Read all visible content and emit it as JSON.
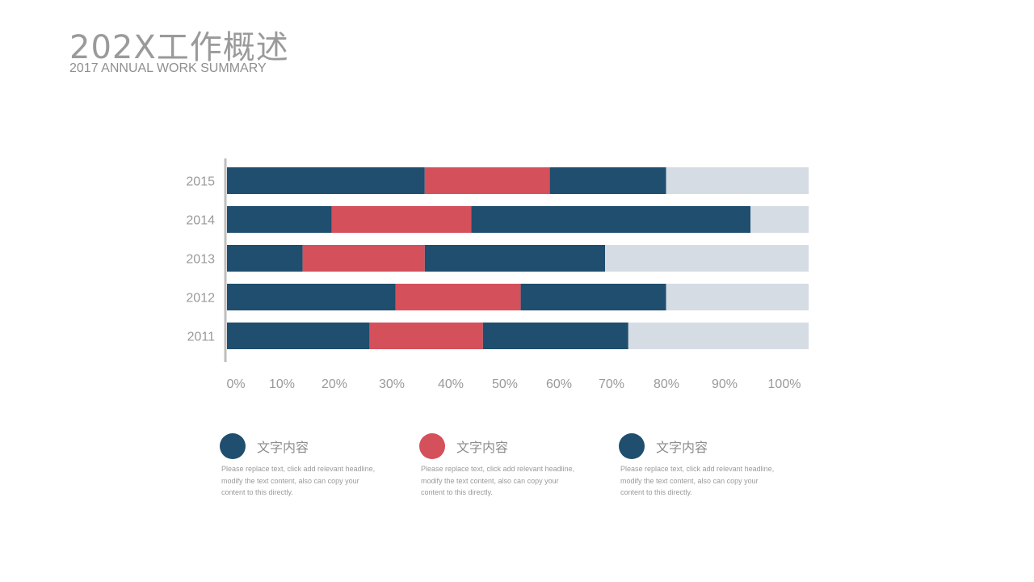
{
  "header": {
    "title": "202X工作概述",
    "subtitle": "2017 ANNUAL WORK SUMMARY"
  },
  "colors": {
    "navy": "#1f4e6e",
    "red": "#d4505b",
    "background_bar": "#d6dce4",
    "axis": "#bfbfbf",
    "tick_text": "#9a9a9a"
  },
  "chart_data": {
    "type": "bar",
    "orientation": "horizontal",
    "stacked": true,
    "categories": [
      "2015",
      "2014",
      "2013",
      "2012",
      "2011"
    ],
    "x_ticks": [
      "0%",
      "10%",
      "20%",
      "30%",
      "40%",
      "50%",
      "60%",
      "70%",
      "80%",
      "90%",
      "100%"
    ],
    "xlim": [
      0,
      100
    ],
    "series": [
      {
        "values": [
          34,
          18,
          13,
          29,
          24.5
        ],
        "color": "#1f4e6e"
      },
      {
        "values": [
          21.5,
          24,
          21,
          21.5,
          19.5
        ],
        "color": "#d4505b"
      },
      {
        "values": [
          20,
          48,
          31,
          25,
          25
        ],
        "color": "#1f4e6e"
      },
      {
        "values": [
          24.5,
          10,
          35,
          24.5,
          31
        ],
        "color": "#d6dce4"
      }
    ],
    "grid": false,
    "legend": "bottom"
  },
  "legend": [
    {
      "title": "文字内容",
      "color": "#1f4e6e",
      "desc": "Please replace text, click add relevant headline, modify the text content, also can copy your content to this directly."
    },
    {
      "title": "文字内容",
      "color": "#d4505b",
      "desc": "Please replace text, click add relevant headline, modify the text content, also can copy your content to this directly."
    },
    {
      "title": "文字内容",
      "color": "#1f4e6e",
      "desc": "Please replace text, click add relevant headline, modify the text content, also can copy your content to this directly."
    }
  ]
}
